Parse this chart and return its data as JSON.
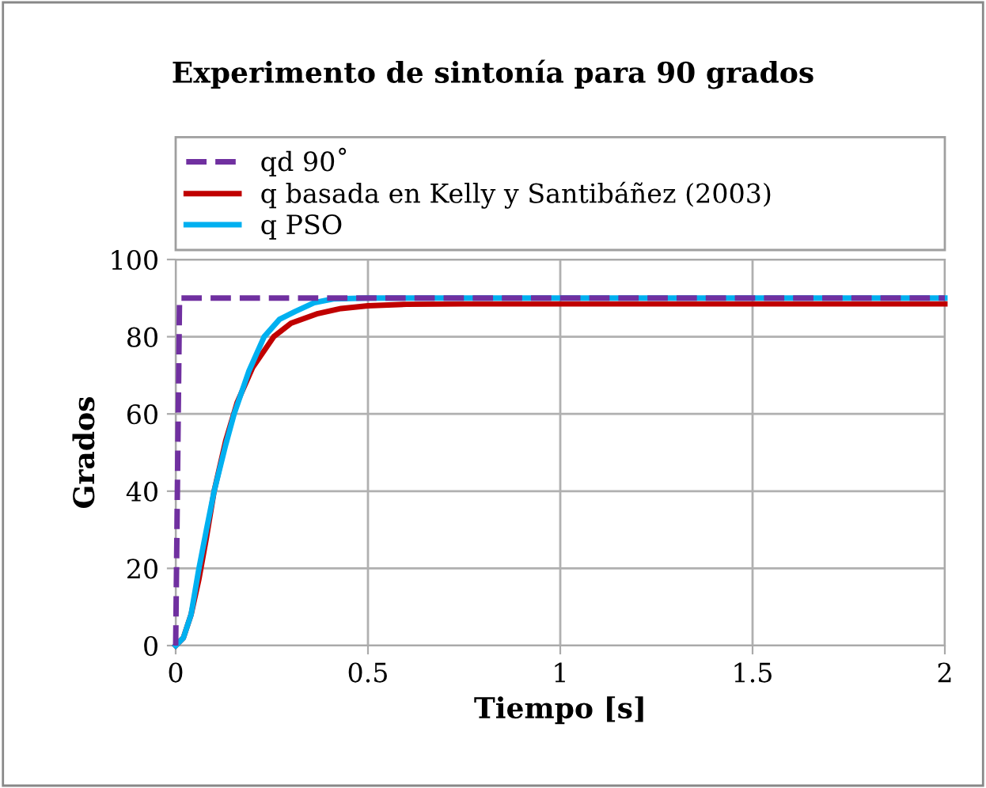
{
  "chart_data": {
    "type": "line",
    "title": "Experimento de sintonía para 90 grados",
    "xlabel": "Tiempo [s]",
    "ylabel": "Grados",
    "series": [
      {
        "name": "qd 90˚",
        "color": "#7030a0",
        "line_style": "dashed",
        "x": [
          0,
          0.01,
          2
        ],
        "values": [
          0,
          90,
          90
        ]
      },
      {
        "name": "q basada en Kelly y Santibáñez (2003)",
        "color": "#c00000",
        "x": [
          0,
          0.02,
          0.04,
          0.06,
          0.08,
          0.1,
          0.13,
          0.16,
          0.2,
          0.255,
          0.3,
          0.37,
          0.43,
          0.5,
          0.6,
          0.75,
          1,
          1.5,
          2
        ],
        "values": [
          0,
          2,
          8,
          17,
          28,
          40,
          53,
          63,
          72,
          80,
          83.5,
          86,
          87.3,
          88,
          88.4,
          88.5,
          88.5,
          88.5,
          88.5
        ]
      },
      {
        "name": "q PSO",
        "color": "#00b0f0",
        "x": [
          0,
          0.02,
          0.04,
          0.06,
          0.08,
          0.1,
          0.13,
          0.152,
          0.19,
          0.23,
          0.27,
          0.31,
          0.36,
          0.41,
          0.5,
          0.75,
          1,
          1.5,
          2
        ],
        "values": [
          0,
          2,
          8,
          19.7,
          30,
          40,
          52,
          60,
          71,
          80,
          84.5,
          86.5,
          88.8,
          89.8,
          90,
          90,
          90,
          90,
          90
        ]
      }
    ],
    "xlim": [
      0,
      2
    ],
    "xticks": [
      0,
      0.5,
      1,
      1.5,
      2
    ],
    "ylim": [
      0,
      100
    ],
    "yticks": [
      0,
      20,
      40,
      60,
      80,
      100
    ],
    "grid": true,
    "legend": "top"
  }
}
